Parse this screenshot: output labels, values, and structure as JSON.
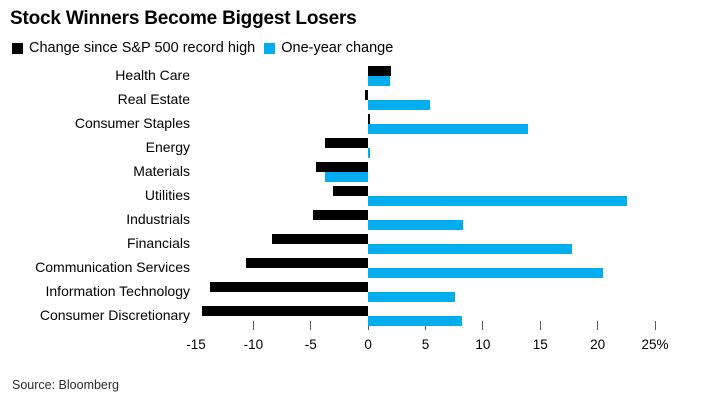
{
  "footer": {
    "source": "Source: Bloomberg"
  },
  "chart_data": {
    "type": "bar",
    "orientation": "horizontal",
    "title": "Stock Winners Become Biggest Losers",
    "xlabel": "",
    "ylabel": "",
    "xlim": [
      -15,
      25
    ],
    "grid": false,
    "legend_position": "top",
    "categories": [
      "Health Care",
      "Real Estate",
      "Consumer Staples",
      "Energy",
      "Materials",
      "Utilities",
      "Industrials",
      "Financials",
      "Communication Services",
      "Information Technology",
      "Consumer Discretionary"
    ],
    "series": [
      {
        "name": "Change since S&P 500 record high",
        "color": "#000000",
        "values": [
          2.0,
          -0.3,
          0.1,
          -3.8,
          -4.5,
          -3.1,
          -4.8,
          -8.4,
          -10.6,
          -13.8,
          -14.5
        ]
      },
      {
        "name": "One-year change",
        "color": "#00aeef",
        "values": [
          1.9,
          5.4,
          13.9,
          0.2,
          -3.8,
          22.6,
          8.3,
          17.8,
          20.5,
          7.6,
          8.2
        ]
      }
    ],
    "x_ticks": [
      {
        "value": -15,
        "label": "-15",
        "mark": false
      },
      {
        "value": -10,
        "label": "-10",
        "mark": true
      },
      {
        "value": -5,
        "label": "-5",
        "mark": true
      },
      {
        "value": 0,
        "label": "0",
        "mark": true
      },
      {
        "value": 5,
        "label": "5",
        "mark": true
      },
      {
        "value": 10,
        "label": "10",
        "mark": true
      },
      {
        "value": 15,
        "label": "15",
        "mark": true
      },
      {
        "value": 20,
        "label": "20",
        "mark": true
      },
      {
        "value": 25,
        "label": "25%",
        "mark": true
      }
    ]
  }
}
